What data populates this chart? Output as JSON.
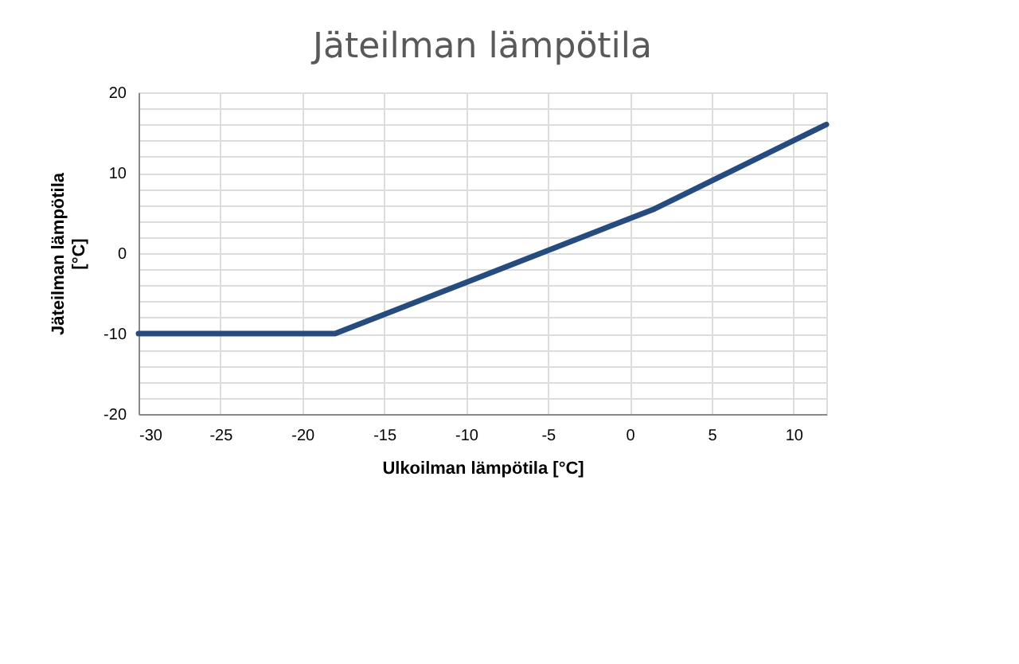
{
  "chart_data": {
    "type": "line",
    "title": "Jäteilman lämpötila",
    "xlabel": "Ulkoilman lämpötila [°C]",
    "ylabel": "Jäteilman lämpötila [°C]",
    "x": [
      -30,
      -18,
      1.5,
      12
    ],
    "series": [
      {
        "color": "#264c7f",
        "values": [
          -10,
          -10,
          5.5,
          16
        ]
      }
    ],
    "xlim": [
      -30,
      12
    ],
    "xticks": [
      -30,
      -25,
      -20,
      -15,
      -10,
      -5,
      0,
      5,
      10
    ],
    "ylim": [
      -20,
      20
    ],
    "yticks": [
      -20,
      {
        "value": -18,
        "label": null
      },
      {
        "value": -16,
        "label": null
      },
      {
        "value": -14,
        "label": null
      },
      {
        "value": -12,
        "label": null
      },
      -10,
      {
        "value": -8,
        "label": null
      },
      {
        "value": -6,
        "label": null
      },
      {
        "value": -4,
        "label": null
      },
      {
        "value": -2,
        "label": null
      },
      0,
      {
        "value": 2,
        "label": null
      },
      {
        "value": 4,
        "label": null
      },
      {
        "value": 6,
        "label": null
      },
      {
        "value": 8,
        "label": null
      },
      10,
      {
        "value": 12,
        "label": null
      },
      {
        "value": 14,
        "label": null
      },
      {
        "value": 16,
        "label": null
      },
      {
        "value": 18,
        "label": null
      },
      20
    ],
    "grid": true,
    "legend": false,
    "marker": "none",
    "line_style": "solid"
  }
}
